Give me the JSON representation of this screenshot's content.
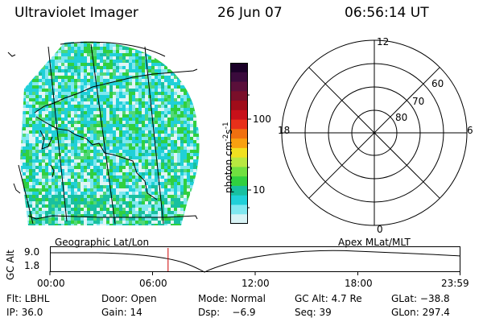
{
  "header": {
    "instrument": "Ultraviolet Imager",
    "date": "26 Jun 07",
    "time": "06:56:14 UT"
  },
  "colorbar": {
    "unit_main": "photon cm",
    "unit_exp1": "-2",
    "unit_mid": "s",
    "unit_exp2": "-1",
    "ticks": [
      "100",
      "10"
    ],
    "colors": [
      "#1a0028",
      "#3a0a3c",
      "#5a0f3a",
      "#7a0f2a",
      "#a00d1a",
      "#c8101a",
      "#e8301a",
      "#f07010",
      "#f8a010",
      "#f0e020",
      "#b8e840",
      "#70e040",
      "#30d040",
      "#18c0a0",
      "#20d0d8",
      "#80e8f0",
      "#d8f4f6"
    ]
  },
  "polar": {
    "mlt_labels": [
      "12",
      "18",
      "6",
      "0"
    ],
    "lat_labels": [
      "60",
      "70",
      "80"
    ]
  },
  "timeline": {
    "left_label": "Geographic Lat/Lon",
    "right_label": "Apex MLat/MLT",
    "axis_title": "GC Alt",
    "y_ticks": [
      "9.0",
      "1.8"
    ],
    "x_ticks": [
      "00:00",
      "06:00",
      "12:00",
      "18:00",
      "23:59"
    ],
    "current_fraction": 0.2884
  },
  "footer": {
    "row1": [
      "Flt: LBHL",
      "Door: Open",
      "Mode: Normal",
      "GC Alt: 4.7 Re",
      "GLat: −38.8"
    ],
    "row2": [
      "IP: 36.0",
      "Gain: 14",
      "Dsp:    −6.9",
      "Seq: 39",
      "GLon: 297.4"
    ]
  },
  "colors": {
    "image_speckle_1": "#20d0d8",
    "image_speckle_2": "#30d040",
    "image_speckle_3": "#e0f4f6",
    "marker_line": "#cc0000"
  }
}
